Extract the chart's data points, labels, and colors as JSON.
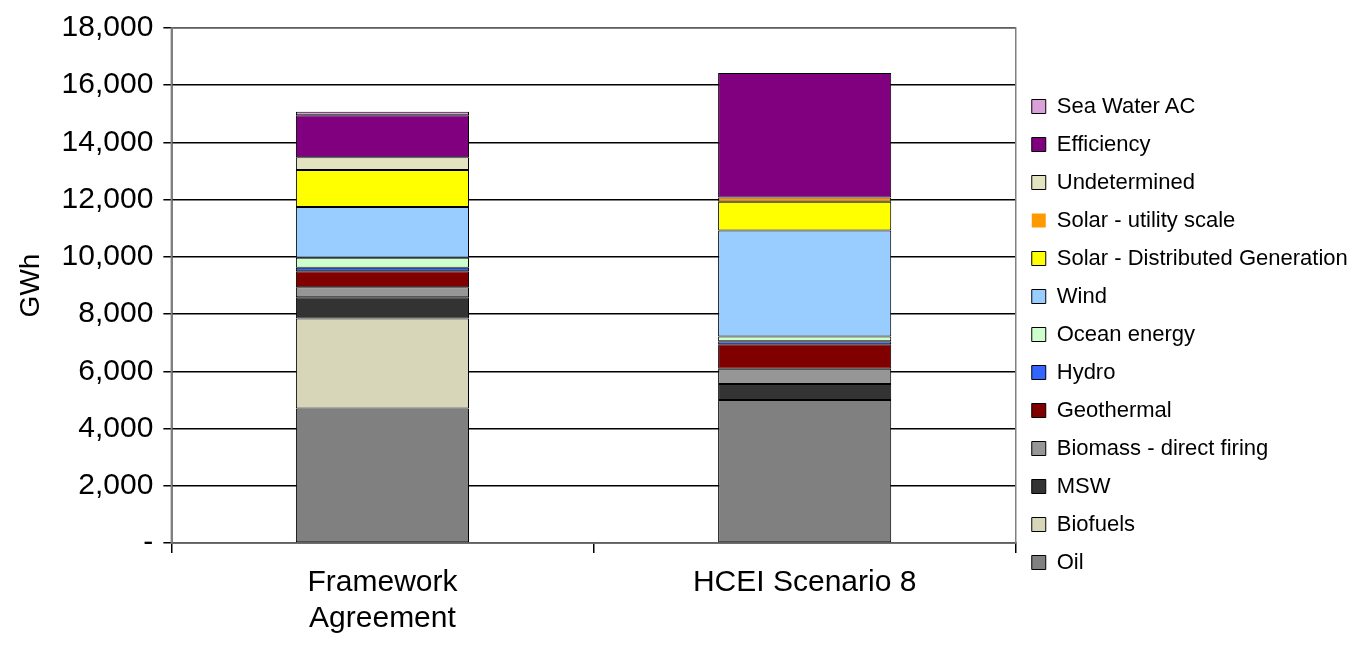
{
  "chart_data": {
    "type": "bar",
    "stacked": true,
    "ylabel": "GWh",
    "categories": [
      "Framework Agreement",
      "HCEI Scenario 8"
    ],
    "ylim": [
      0,
      18000
    ],
    "yticks": [
      {
        "value": 0,
        "label": "-"
      },
      {
        "value": 2000,
        "label": "2,000"
      },
      {
        "value": 4000,
        "label": "4,000"
      },
      {
        "value": 6000,
        "label": "6,000"
      },
      {
        "value": 8000,
        "label": "8,000"
      },
      {
        "value": 10000,
        "label": "10,000"
      },
      {
        "value": 12000,
        "label": "12,000"
      },
      {
        "value": 14000,
        "label": "14,000"
      },
      {
        "value": 16000,
        "label": "16,000"
      },
      {
        "value": 18000,
        "label": "18,000"
      }
    ],
    "grid": "y",
    "legend": "right",
    "series": [
      {
        "name": "Oil",
        "color": "#808080",
        "values": [
          4700,
          5000
        ]
      },
      {
        "name": "Biofuels",
        "color": "#d8d6b8",
        "values": [
          3150,
          0
        ]
      },
      {
        "name": "MSW",
        "color": "#333333",
        "values": [
          740,
          560
        ]
      },
      {
        "name": "Biomass - direct firing",
        "color": "#969696",
        "values": [
          350,
          530
        ]
      },
      {
        "name": "Geothermal",
        "color": "#800000",
        "values": [
          560,
          860
        ]
      },
      {
        "name": "Hydro",
        "color": "#3366ff",
        "values": [
          120,
          100
        ]
      },
      {
        "name": "Ocean energy",
        "color": "#ccffcc",
        "values": [
          350,
          170
        ]
      },
      {
        "name": "Wind",
        "color": "#99ccff",
        "values": [
          1770,
          3700
        ]
      },
      {
        "name": "Solar - Distributed Generation",
        "color": "#ffff00",
        "values": [
          1300,
          1010
        ]
      },
      {
        "name": "Solar - utility scale",
        "color": "#ff9900",
        "values": [
          0,
          150
        ]
      },
      {
        "name": "Undetermined",
        "color": "#e3e3c1",
        "values": [
          440,
          0
        ]
      },
      {
        "name": "Efficiency",
        "color": "#800080",
        "values": [
          1470,
          4350
        ]
      },
      {
        "name": "Sea Water AC",
        "color": "#d9a0d9",
        "values": [
          120,
          0
        ]
      }
    ]
  }
}
